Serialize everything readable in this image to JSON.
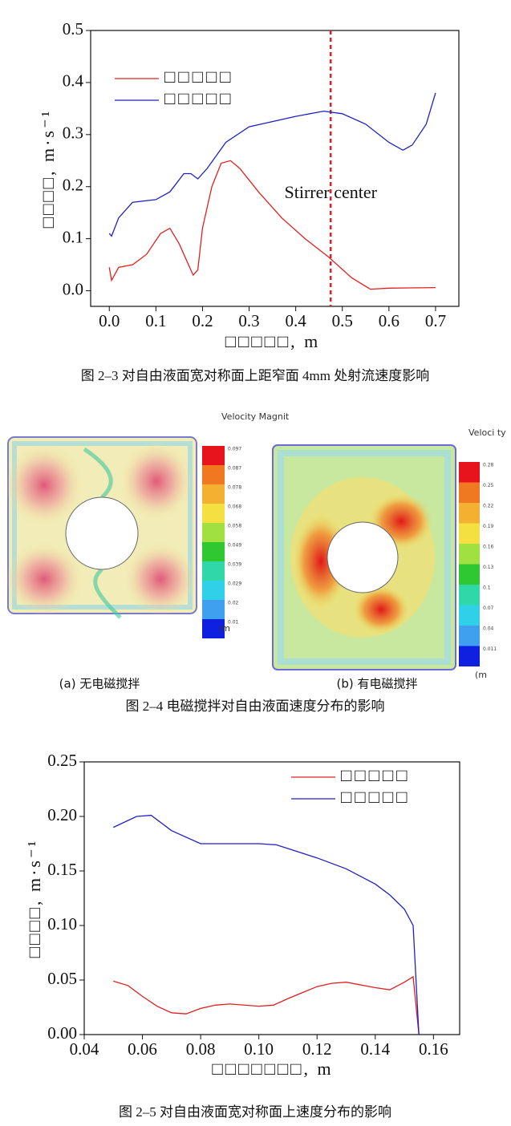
{
  "chart_data": [
    {
      "type": "line",
      "xlabel": "□□□□□, m",
      "ylabel": "□□□□, m·s⁻¹",
      "xlim": [
        -0.04,
        0.75
      ],
      "ylim": [
        -0.03,
        0.5
      ],
      "xticks": [
        {
          "value": 0,
          "label": "0.0"
        },
        0.1,
        0.2,
        0.3,
        0.4,
        0.5,
        0.6,
        0.7
      ],
      "yticks": [
        {
          "value": 0,
          "label": "0.0"
        },
        0.1,
        0.2,
        0.3,
        0.4,
        0.5
      ],
      "legend": "upper left",
      "grid": false,
      "annotation": {
        "x": 0.475,
        "label": "Stirrer center",
        "color": "#e02020"
      },
      "series": [
        {
          "name": "□□□□□",
          "color": "#e02020",
          "x": [
            0,
            0.005,
            0.02,
            0.05,
            0.08,
            0.11,
            0.13,
            0.15,
            0.17,
            0.18,
            0.19,
            0.2,
            0.22,
            0.24,
            0.26,
            0.28,
            0.32,
            0.37,
            0.42,
            0.47,
            0.52,
            0.56,
            0.6,
            0.7
          ],
          "values": [
            0.045,
            0.02,
            0.045,
            0.05,
            0.07,
            0.11,
            0.12,
            0.09,
            0.05,
            0.03,
            0.04,
            0.12,
            0.2,
            0.245,
            0.25,
            0.235,
            0.19,
            0.14,
            0.1,
            0.065,
            0.025,
            0.003,
            0.005,
            0.006
          ]
        },
        {
          "name": "□□□□□",
          "color": "#2020c0",
          "x": [
            0,
            0.005,
            0.02,
            0.05,
            0.1,
            0.13,
            0.16,
            0.175,
            0.19,
            0.21,
            0.25,
            0.3,
            0.4,
            0.46,
            0.5,
            0.55,
            0.6,
            0.63,
            0.65,
            0.68,
            0.7
          ],
          "values": [
            0.11,
            0.105,
            0.14,
            0.17,
            0.175,
            0.19,
            0.225,
            0.225,
            0.215,
            0.235,
            0.285,
            0.315,
            0.335,
            0.345,
            0.34,
            0.32,
            0.285,
            0.27,
            0.28,
            0.32,
            0.38
          ]
        }
      ],
      "caption": "图 2–3 对自由液面宽对称面上距窄面 4mm 处射流速度影响"
    },
    {
      "type": "line",
      "xlabel": "□□□□□□□, m",
      "ylabel": "□□□□, m·s⁻¹",
      "xlim": [
        0.04,
        0.169
      ],
      "ylim": [
        0,
        0.25
      ],
      "xticks": [
        0.04,
        0.06,
        0.08,
        {
          "value": 0.1,
          "label": "0.10"
        },
        0.12,
        0.14,
        0.16
      ],
      "yticks": [
        {
          "value": 0,
          "label": "0.00"
        },
        0.05,
        {
          "value": 0.1,
          "label": "0.10"
        },
        0.15,
        {
          "value": 0.2,
          "label": "0.20"
        },
        0.25
      ],
      "legend": "upper right",
      "grid": false,
      "series": [
        {
          "name": "□□□□□",
          "color": "#e02020",
          "x": [
            0.05,
            0.055,
            0.06,
            0.065,
            0.07,
            0.075,
            0.08,
            0.085,
            0.09,
            0.1,
            0.105,
            0.11,
            0.12,
            0.125,
            0.13,
            0.14,
            0.145,
            0.15,
            0.153,
            0.155
          ],
          "values": [
            0.049,
            0.045,
            0.035,
            0.026,
            0.02,
            0.019,
            0.024,
            0.027,
            0.028,
            0.026,
            0.027,
            0.033,
            0.044,
            0.047,
            0.048,
            0.043,
            0.041,
            0.048,
            0.053,
            0
          ]
        },
        {
          "name": "□□□□□",
          "color": "#2020c0",
          "x": [
            0.05,
            0.058,
            0.063,
            0.07,
            0.08,
            0.09,
            0.1,
            0.106,
            0.12,
            0.13,
            0.14,
            0.145,
            0.15,
            0.153,
            0.155
          ],
          "values": [
            0.19,
            0.2,
            0.201,
            0.187,
            0.175,
            0.175,
            0.175,
            0.174,
            0.162,
            0.152,
            0.138,
            0.128,
            0.115,
            0.1,
            0
          ]
        }
      ],
      "caption": "图 2–5 对自由液面宽对称面上速度分布的影响"
    }
  ],
  "figure_2_4": {
    "panels": [
      {
        "colorbar_title": "Velocity Magnit",
        "unit": "(m",
        "levels": [
          "0.097",
          "0.087",
          "0.078",
          "0.068",
          "0.058",
          "0.049",
          "0.039",
          "0.029",
          "0.02",
          "0.01"
        ],
        "label": "(a)  无电磁搅拌"
      },
      {
        "colorbar_title": "Veloci ty",
        "unit": "(m",
        "levels": [
          "0.28",
          "0.25",
          "0.22",
          "0.19",
          "0.16",
          "0.13",
          "0.1",
          "0.07",
          "0.04",
          "0.011"
        ],
        "label": "(b)  有电磁搅拌"
      }
    ],
    "caption": "图 2–4 电磁搅拌对自由液面速度分布的影响"
  }
}
